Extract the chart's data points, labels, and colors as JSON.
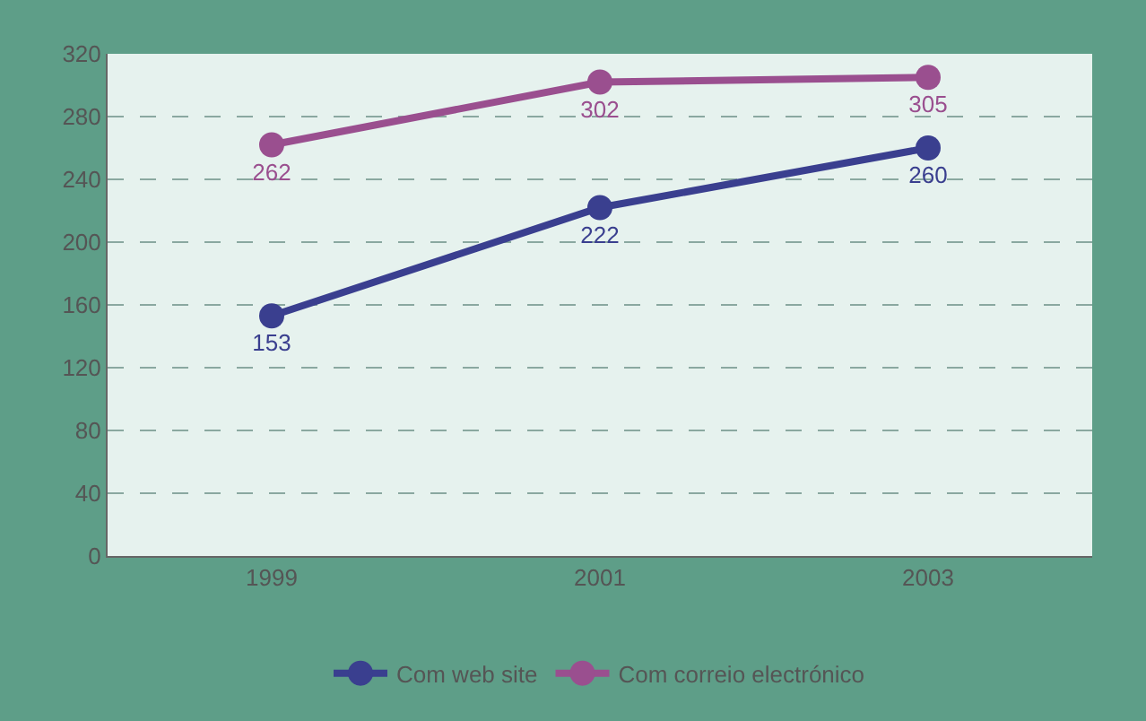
{
  "chart_data": {
    "type": "line",
    "categories": [
      "1999",
      "2001",
      "2003"
    ],
    "series": [
      {
        "name": "Com web site",
        "color": "#3a3f8f",
        "values": [
          153,
          222,
          260
        ]
      },
      {
        "name": "Com correio electrónico",
        "color": "#9a4f8f",
        "values": [
          262,
          302,
          305
        ]
      }
    ],
    "ylim": [
      0,
      320
    ],
    "yticks": [
      0,
      40,
      80,
      120,
      160,
      200,
      240,
      280,
      320
    ],
    "grid": "y",
    "legend": "bottom",
    "marker": "circle",
    "line_style": "solid",
    "data_labels": true
  }
}
